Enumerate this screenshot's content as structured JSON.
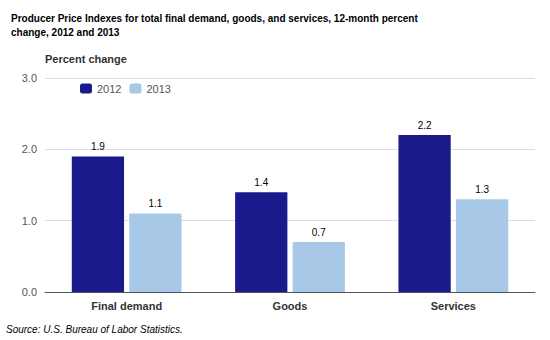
{
  "chart_data": {
    "type": "bar",
    "title": [
      "Producer Price Indexes for total final demand, goods, and services, 12-month percent",
      "change, 2012 and 2013"
    ],
    "ylabel": "Percent change",
    "annotation": "Source: U.S. Bureau of Labor Statistics.",
    "categories": [
      "Final demand",
      "Goods",
      "Services"
    ],
    "series": [
      {
        "name": "2012",
        "color": "#1a1a8c",
        "values": [
          1.9,
          1.4,
          2.2
        ]
      },
      {
        "name": "2013",
        "color": "#a8c8e8",
        "values": [
          1.1,
          0.7,
          1.3
        ]
      }
    ],
    "ylim": [
      0.0,
      3.0
    ],
    "yticks": [
      {
        "value": 0,
        "label": "0.0"
      },
      {
        "value": 1,
        "label": "1.0"
      },
      {
        "value": 2,
        "label": "2.0"
      },
      {
        "value": 3,
        "label": "3.0"
      }
    ],
    "grid": true,
    "legend": "upper left",
    "data_labels": true
  }
}
